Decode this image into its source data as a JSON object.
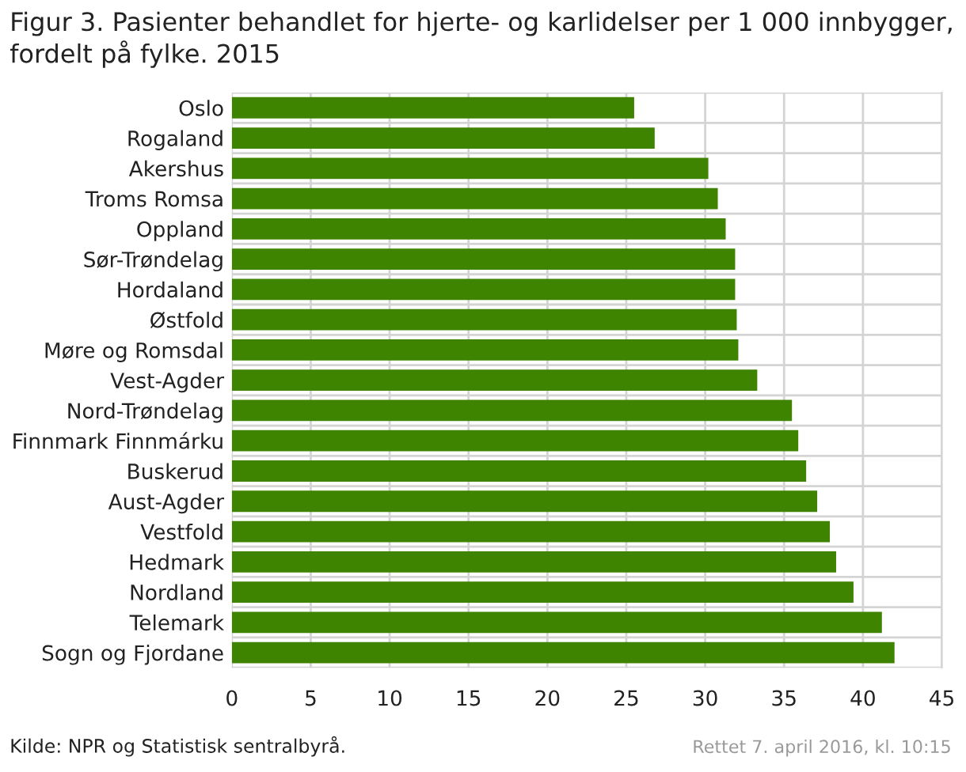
{
  "chart_data": {
    "type": "bar",
    "orientation": "horizontal",
    "title": "Figur 3. Pasienter behandlet for hjerte- og karlidelser per 1 000 innbygger, fordelt på fylke. 2015",
    "categories": [
      "Oslo",
      "Rogaland",
      "Akershus",
      "Troms Romsa",
      "Oppland",
      "Sør-Trøndelag",
      "Hordaland",
      "Østfold",
      "Møre og Romsdal",
      "Vest-Agder",
      "Nord-Trøndelag",
      "Finnmark Finnmárku",
      "Buskerud",
      "Aust-Agder",
      "Vestfold",
      "Hedmark",
      "Nordland",
      "Telemark",
      "Sogn og Fjordane"
    ],
    "values": [
      25.5,
      26.8,
      30.2,
      30.8,
      31.3,
      31.9,
      31.9,
      32.0,
      32.1,
      33.3,
      35.5,
      35.9,
      36.4,
      37.1,
      37.9,
      38.3,
      39.4,
      41.2,
      42.0
    ],
    "color": "#3f8400",
    "xlim": [
      0,
      45
    ],
    "xticks": [
      0,
      5,
      10,
      15,
      20,
      25,
      30,
      35,
      40,
      45
    ],
    "grid": true,
    "annotations": [
      "Kilde: NPR og Statistisk sentralbyrå.",
      "Rettet 7. april 2016, kl. 10:15"
    ]
  }
}
